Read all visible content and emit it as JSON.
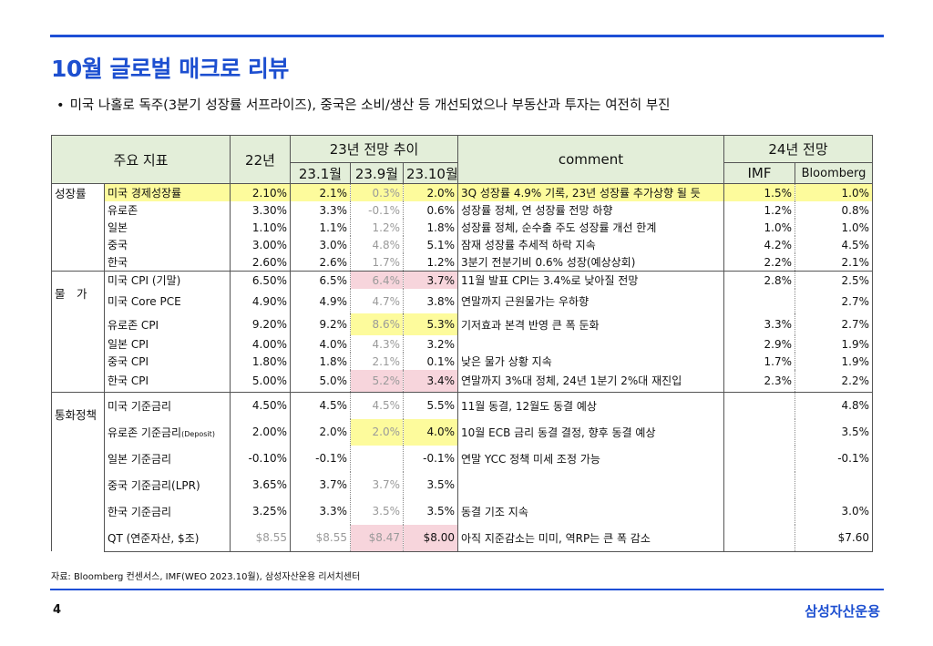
{
  "title": "10월 글로벌 매크로 리뷰",
  "subtitle": "미국 나홀로 독주(3분기 성장률 서프라이즈), 중국은 소비/생산 등 개선되었으나 부동산과 투자는 여전히 부진",
  "header": {
    "indicator": "주요 지표",
    "y22": "22년",
    "trend23": "23년 전망 추이",
    "m231": "23.1월",
    "m239": "23.9월",
    "m2310": "23.10월",
    "comment": "comment",
    "f24": "24년 전망",
    "imf": "IMF",
    "bloomberg": "Bloomberg"
  },
  "categories": {
    "growth": "성장률",
    "price": "물　가",
    "monetary": "통화정책"
  },
  "rows": [
    {
      "name": "미국 경제성장률",
      "y22": "2.10%",
      "m231": "2.1%",
      "m239": "0.3%",
      "m2310": "2.0%",
      "comment": "3Q 성장률 4.9% 기록, 23년 성장률 추가상향 될 듯",
      "imf": "1.5%",
      "bbg": "1.0%"
    },
    {
      "name": "유로존",
      "y22": "3.30%",
      "m231": "3.3%",
      "m239": "-0.1%",
      "m2310": "0.6%",
      "comment": "성장률 정체, 연 성장률 전망 하향",
      "imf": "1.2%",
      "bbg": "0.8%"
    },
    {
      "name": "일본",
      "y22": "1.10%",
      "m231": "1.1%",
      "m239": "1.2%",
      "m2310": "1.8%",
      "comment": "성장률 정체, 순수출 주도 성장률 개선 한계",
      "imf": "1.0%",
      "bbg": "1.0%"
    },
    {
      "name": "중국",
      "y22": "3.00%",
      "m231": "3.0%",
      "m239": "4.8%",
      "m2310": "5.1%",
      "comment": "잠재 성장률 추세적 하락 지속",
      "imf": "4.2%",
      "bbg": "4.5%"
    },
    {
      "name": "한국",
      "y22": "2.60%",
      "m231": "2.6%",
      "m239": "1.7%",
      "m2310": "1.2%",
      "comment": "3분기 전분기비 0.6% 성장(예상상회)",
      "imf": "2.2%",
      "bbg": "2.1%"
    },
    {
      "name": "미국 CPI (기말)",
      "y22": "6.50%",
      "m231": "6.5%",
      "m239": "6.4%",
      "m2310": "3.7%",
      "comment": "11월 발표 CPI는 3.4%로 낮아질 전망",
      "imf": "2.8%",
      "bbg": "2.5%"
    },
    {
      "name": "미국 Core PCE",
      "y22": "4.90%",
      "m231": "4.9%",
      "m239": "4.7%",
      "m2310": "3.8%",
      "comment": "연말까지 근원물가는 우하향",
      "imf": "",
      "bbg": "2.7%"
    },
    {
      "name": "유로존 CPI",
      "y22": "9.20%",
      "m231": "9.2%",
      "m239": "8.6%",
      "m2310": "5.3%",
      "comment": "기저효과 본격 반영 큰 폭 둔화",
      "imf": "3.3%",
      "bbg": "2.7%"
    },
    {
      "name": "일본 CPI",
      "y22": "4.00%",
      "m231": "4.0%",
      "m239": "4.3%",
      "m2310": "3.2%",
      "comment": "",
      "imf": "2.9%",
      "bbg": "1.9%"
    },
    {
      "name": "중국 CPI",
      "y22": "1.80%",
      "m231": "1.8%",
      "m239": "2.1%",
      "m2310": "0.1%",
      "comment": "낮은 물가 상황 지속",
      "imf": "1.7%",
      "bbg": "1.9%"
    },
    {
      "name": "한국 CPI",
      "y22": "5.00%",
      "m231": "5.0%",
      "m239": "5.2%",
      "m2310": "3.4%",
      "comment": "연말까지 3%대 정체, 24년 1분기 2%대 재진입",
      "imf": "2.3%",
      "bbg": "2.2%"
    },
    {
      "name": "미국 기준금리",
      "y22": "4.50%",
      "m231": "4.5%",
      "m239": "4.5%",
      "m2310": "5.5%",
      "comment": "11월 동결, 12월도 동결 예상",
      "imf": "",
      "bbg": "4.8%"
    },
    {
      "name": "유로존 기준금리",
      "name_suffix": "(Deposit)",
      "y22": "2.00%",
      "m231": "2.0%",
      "m239": "2.0%",
      "m2310": "4.0%",
      "comment": "10월 ECB 금리 동결 결정, 향후 동결 예상",
      "imf": "",
      "bbg": "3.5%"
    },
    {
      "name": "일본 기준금리",
      "y22": "-0.10%",
      "m231": "-0.1%",
      "m239": "",
      "m2310": "-0.1%",
      "comment": "연말  YCC 정책 미세 조정 가능",
      "imf": "",
      "bbg": "-0.1%"
    },
    {
      "name": "중국 기준금리(LPR)",
      "y22": "3.65%",
      "m231": "3.7%",
      "m239": "3.7%",
      "m2310": "3.5%",
      "comment": "",
      "imf": "",
      "bbg": ""
    },
    {
      "name": "한국 기준금리",
      "y22": "3.25%",
      "m231": "3.3%",
      "m239": "3.5%",
      "m2310": "3.5%",
      "comment": "동결 기조 지속",
      "imf": "",
      "bbg": "3.0%"
    },
    {
      "name": "QT (연준자산, $조)",
      "y22": "$8.55",
      "m231": "$8.55",
      "m239": "$8.47",
      "m2310": "$8.00",
      "comment": "아직 지준감소는 미미, 역RP는 큰 폭 감소",
      "imf": "",
      "bbg": "$7.60"
    }
  ],
  "source": "자료: Bloomberg 컨센서스, IMF(WEO 2023.10월), 삼성자산운용 리서치센터",
  "page_number": "4",
  "logo": "삼성자산운용",
  "colors": {
    "accent": "#1d4fd0",
    "header_bg": "#e3eed9",
    "highlight_yellow": "#fdfb9c",
    "highlight_pink": "#f7d5dc"
  }
}
